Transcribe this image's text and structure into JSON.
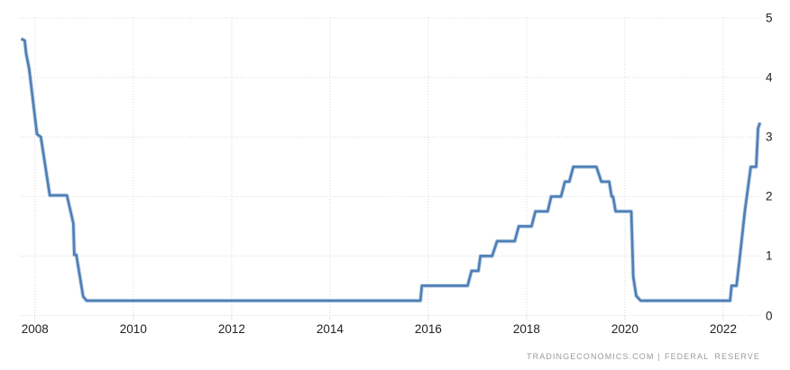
{
  "chart_data": {
    "type": "line",
    "xlim": [
      2007.71,
      2022.79
    ],
    "ylim": [
      0,
      5
    ],
    "x_ticks": [
      2008,
      2010,
      2012,
      2014,
      2016,
      2018,
      2020,
      2022
    ],
    "x_tick_labels": [
      "2008",
      "2010",
      "2012",
      "2014",
      "2016",
      "2018",
      "2020",
      "2022"
    ],
    "y_ticks": [
      0,
      1,
      2,
      3,
      4,
      5
    ],
    "y_tick_labels": [
      "0",
      "1",
      "2",
      "3",
      "4",
      "5"
    ],
    "grid": true,
    "legend": "none",
    "gridline_color": "#d9d9d9",
    "tick_mark_color": "#cccccc",
    "axis_label_color": "#222222",
    "background_color": "#ffffff",
    "line_color": "#4e80b7",
    "line_halo_color": "rgba(78,128,183,0.30)",
    "series": [
      {
        "points": [
          [
            2007.72,
            4.65
          ],
          [
            2007.79,
            4.62
          ],
          [
            2007.82,
            4.4
          ],
          [
            2007.88,
            4.15
          ],
          [
            2008.04,
            3.05
          ],
          [
            2008.12,
            3.0
          ],
          [
            2008.3,
            2.02
          ],
          [
            2008.65,
            2.02
          ],
          [
            2008.78,
            1.55
          ],
          [
            2008.8,
            1.02
          ],
          [
            2008.84,
            1.02
          ],
          [
            2008.98,
            0.32
          ],
          [
            2009.05,
            0.25
          ],
          [
            2015.84,
            0.25
          ],
          [
            2015.87,
            0.5
          ],
          [
            2016.8,
            0.5
          ],
          [
            2016.88,
            0.75
          ],
          [
            2017.02,
            0.75
          ],
          [
            2017.06,
            1.0
          ],
          [
            2017.3,
            1.0
          ],
          [
            2017.4,
            1.25
          ],
          [
            2017.76,
            1.25
          ],
          [
            2017.84,
            1.5
          ],
          [
            2018.1,
            1.5
          ],
          [
            2018.18,
            1.75
          ],
          [
            2018.43,
            1.75
          ],
          [
            2018.5,
            2.0
          ],
          [
            2018.7,
            2.0
          ],
          [
            2018.78,
            2.25
          ],
          [
            2018.87,
            2.25
          ],
          [
            2018.95,
            2.5
          ],
          [
            2019.42,
            2.5
          ],
          [
            2019.52,
            2.25
          ],
          [
            2019.68,
            2.25
          ],
          [
            2019.73,
            2.0
          ],
          [
            2019.76,
            2.0
          ],
          [
            2019.81,
            1.75
          ],
          [
            2020.13,
            1.75
          ],
          [
            2020.17,
            0.65
          ],
          [
            2020.23,
            0.33
          ],
          [
            2020.32,
            0.25
          ],
          [
            2022.14,
            0.25
          ],
          [
            2022.17,
            0.5
          ],
          [
            2022.27,
            0.5
          ],
          [
            2022.34,
            1.0
          ],
          [
            2022.44,
            1.75
          ],
          [
            2022.56,
            2.5
          ],
          [
            2022.67,
            2.5
          ],
          [
            2022.71,
            3.15
          ],
          [
            2022.75,
            3.24
          ]
        ]
      }
    ]
  },
  "attribution": {
    "brand": "TRADINGECONOMICS.COM",
    "separator": "|",
    "source": "FEDERAL RESERVE",
    "color": "#9a9a9a"
  }
}
